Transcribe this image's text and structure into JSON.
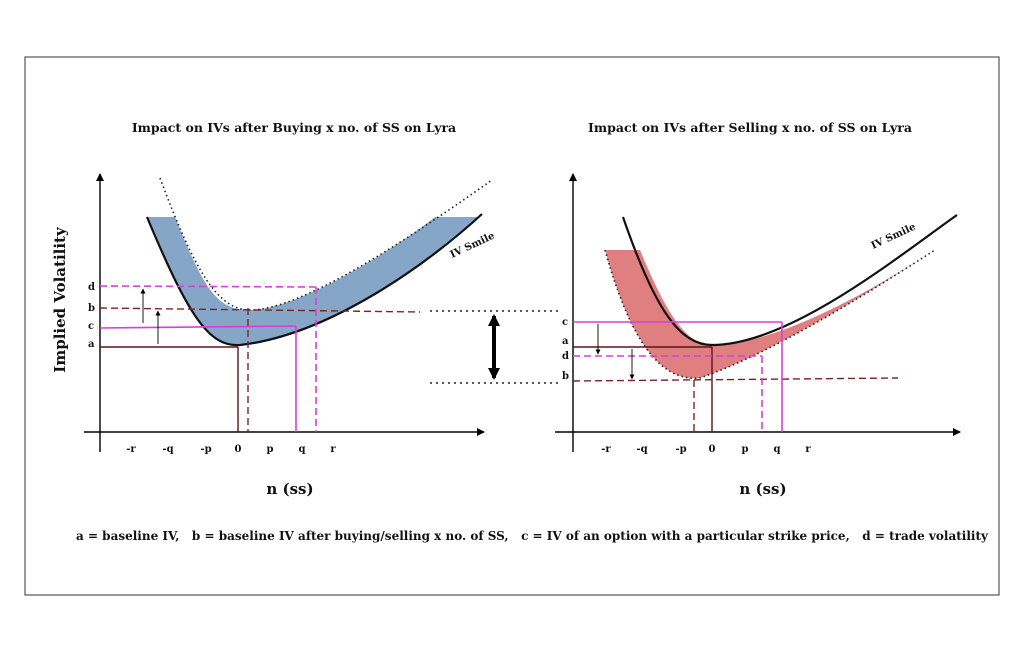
{
  "left_panel": {
    "title": "Impact on IVs after Buying x no. of SS on Lyra",
    "y_axis_label": "Implied Volatility",
    "x_axis_label": "n (ss)",
    "curve_label": "IV Smile",
    "x_ticks": [
      "-r",
      "-q",
      "-p",
      "0",
      "p",
      "q",
      "r"
    ],
    "y_ticks": [
      "d",
      "b",
      "c",
      "a"
    ]
  },
  "right_panel": {
    "title": "Impact on IVs after Selling x no. of SS on Lyra",
    "x_axis_label": "n (ss)",
    "curve_label": "IV Smile",
    "x_ticks": [
      "-r",
      "-q",
      "-p",
      "0",
      "p",
      "q",
      "r"
    ],
    "y_ticks": [
      "c",
      "a",
      "d",
      "b"
    ]
  },
  "legend_note": "a = baseline IV,   b = baseline IV after buying/selling x no. of SS,   c = IV of an option with a particular strike price,   d = trade volatility",
  "colors": {
    "buy_fill": "#86a6c8",
    "sell_fill": "#e07f7f",
    "magenta": "#d640d6",
    "dark_red": "#7a2424",
    "frame": "#333333"
  }
}
